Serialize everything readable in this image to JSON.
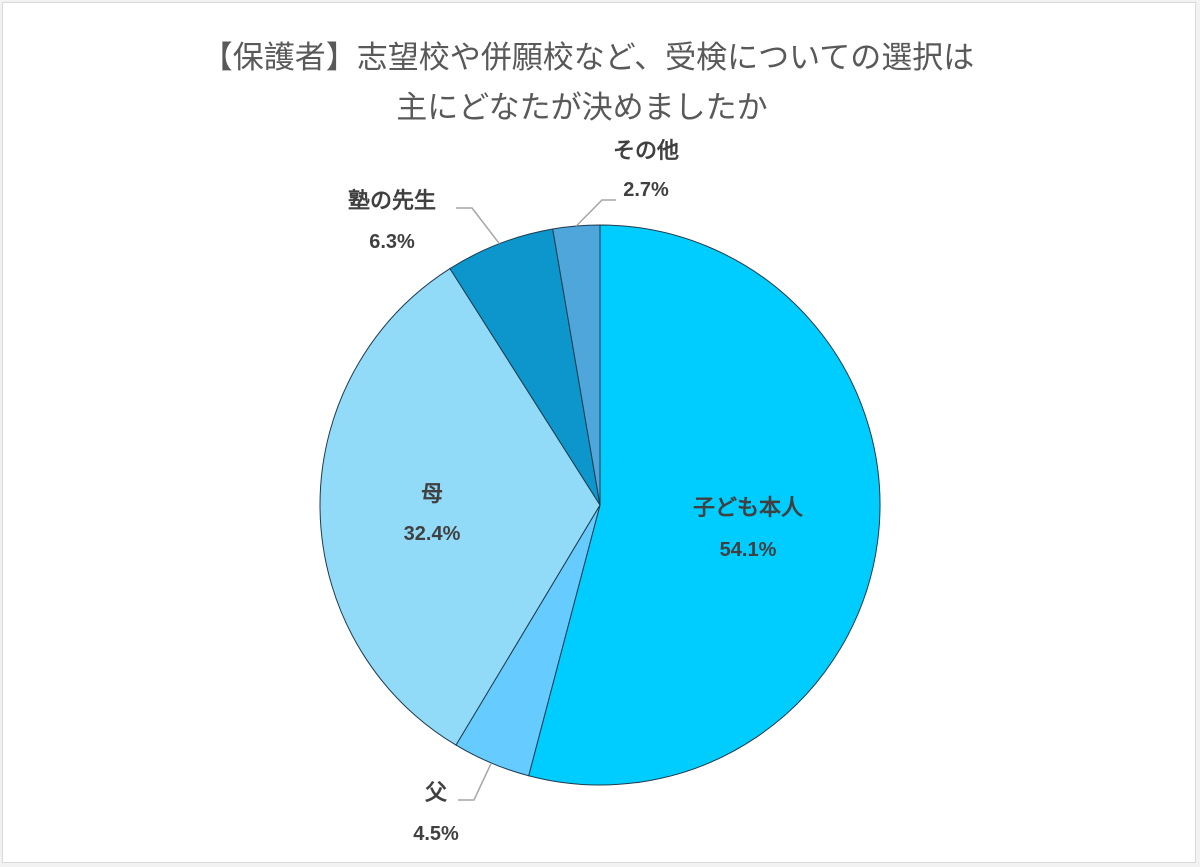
{
  "chart_data": {
    "type": "pie",
    "title_line1": "【保護者】志望校や併願校など、受検についての選択は",
    "title_line2": "主にどなたが決めましたか",
    "start_angle_deg": 0,
    "direction": "clockwise",
    "slices": [
      {
        "label": "子ども本人",
        "value": 54.1,
        "display": "54.1%",
        "color": "#00cdff"
      },
      {
        "label": "父",
        "value": 4.5,
        "display": "4.5%",
        "color": "#66ccff"
      },
      {
        "label": "母",
        "value": 32.4,
        "display": "32.4%",
        "color": "#92dbf8"
      },
      {
        "label": "塾の先生",
        "value": 6.3,
        "display": "6.3%",
        "color": "#0c96cc"
      },
      {
        "label": "その他",
        "value": 2.7,
        "display": "2.7%",
        "color": "#4ea6da"
      }
    ]
  }
}
